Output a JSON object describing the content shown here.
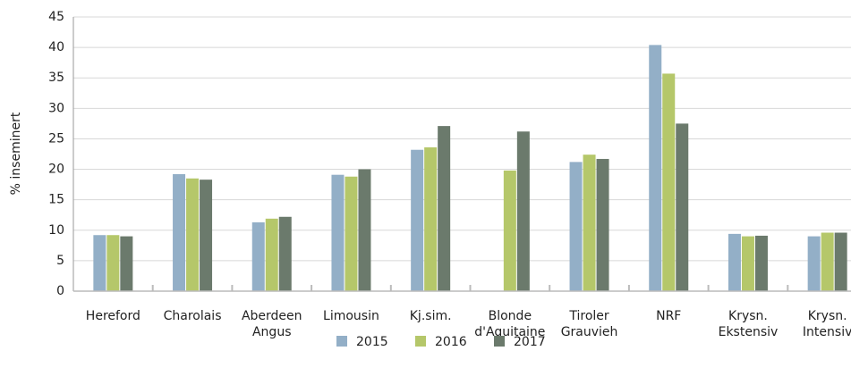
{
  "chart_data": {
    "type": "bar",
    "y_label": "% inseminert",
    "categories": [
      "Hereford",
      "Charolais",
      "Aberdeen\nAngus",
      "Limousin",
      "Kj.sim.",
      "Blonde\nd'Aquitaine",
      "Tiroler\nGrauvieh",
      "NRF",
      "Krysn.\nEkstensiv",
      "Krysn.\nIntensiv"
    ],
    "series": [
      {
        "name": "2015",
        "color": "#93afc7",
        "values": [
          9.2,
          19.2,
          11.3,
          19.1,
          23.2,
          null,
          21.2,
          40.4,
          9.4,
          9.0
        ]
      },
      {
        "name": "2016",
        "color": "#b5c76a",
        "values": [
          9.2,
          18.5,
          11.9,
          18.8,
          23.6,
          19.8,
          22.4,
          35.7,
          9.0,
          9.6
        ]
      },
      {
        "name": "2017",
        "color": "#6b7a6c",
        "values": [
          9.0,
          18.3,
          12.2,
          20.0,
          27.1,
          26.2,
          21.7,
          27.5,
          9.1,
          9.6
        ]
      }
    ],
    "ylim": [
      0,
      45
    ],
    "yticks": [
      0,
      5,
      10,
      15,
      20,
      25,
      30,
      35,
      40,
      45
    ],
    "grid": true
  }
}
